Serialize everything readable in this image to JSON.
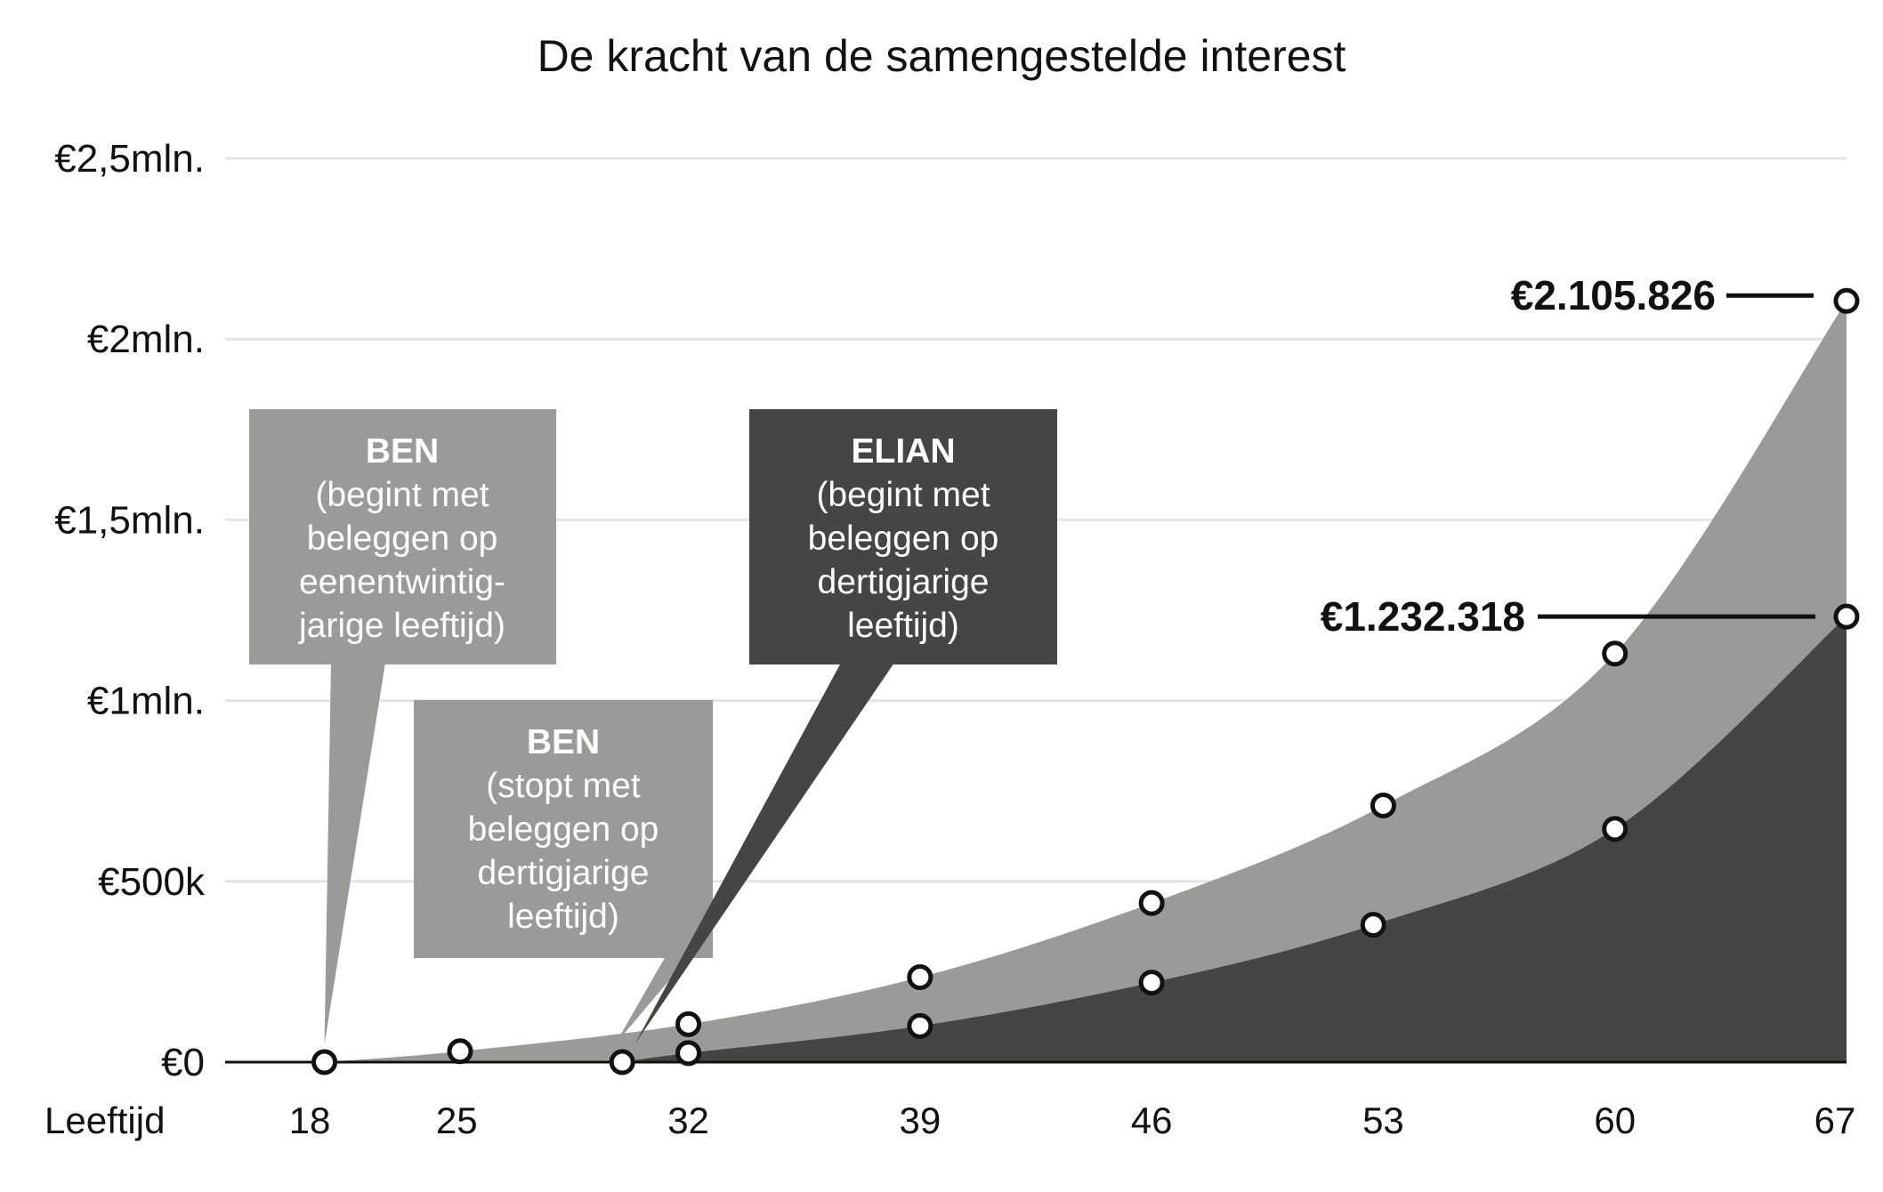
{
  "chart_data": {
    "type": "area",
    "title": "De kracht van de samengestelde interest",
    "xlabel": "Leeftijd",
    "ylabel": "",
    "x_ticks": [
      18,
      25,
      32,
      39,
      46,
      53,
      60,
      67
    ],
    "y_ticks": [
      {
        "value": 0,
        "label": "€0"
      },
      {
        "value": 500000,
        "label": "€500k"
      },
      {
        "value": 1000000,
        "label": "€1mln."
      },
      {
        "value": 1500000,
        "label": "€1,5mln."
      },
      {
        "value": 2000000,
        "label": "€2mln."
      },
      {
        "value": 2500000,
        "label": "€2,5mln."
      }
    ],
    "xlim": [
      18,
      67
    ],
    "ylim": [
      0,
      2500000
    ],
    "grid": true,
    "colors": {
      "ben": "#9a9a99",
      "elian": "#454544",
      "grid": "#e4e4e4",
      "axis": "#111111"
    },
    "series": [
      {
        "key": "ben",
        "color": "#9a9a99",
        "points": [
          {
            "x": 21,
            "y": 0
          },
          {
            "x": 25.1,
            "y": 30000
          },
          {
            "x": 32,
            "y": 105000
          },
          {
            "x": 39,
            "y": 235000
          },
          {
            "x": 46,
            "y": 440000
          },
          {
            "x": 53,
            "y": 710000
          },
          {
            "x": 60,
            "y": 1130000
          },
          {
            "x": 67,
            "y": 2105826
          }
        ]
      },
      {
        "key": "elian",
        "color": "#454544",
        "points": [
          {
            "x": 30,
            "y": 0
          },
          {
            "x": 32,
            "y": 25000
          },
          {
            "x": 39,
            "y": 100000
          },
          {
            "x": 46,
            "y": 220000
          },
          {
            "x": 52.7,
            "y": 380000
          },
          {
            "x": 60,
            "y": 645000
          },
          {
            "x": 67,
            "y": 1232318
          }
        ]
      }
    ],
    "end_labels": [
      {
        "text": "€2.105.826",
        "x": 67,
        "y": 2105826
      },
      {
        "text": "€1.232.318",
        "x": 67,
        "y": 1232318
      }
    ],
    "callouts": [
      {
        "title": "BEN",
        "lines": [
          "(begint met",
          "beleggen op",
          "eenentwintig-",
          "jarige leeftijd)"
        ],
        "color": "#9a9a99",
        "target_x": 21
      },
      {
        "title": "BEN",
        "lines": [
          "(stopt met",
          "beleggen op",
          "dertigjarige",
          "leeftijd)"
        ],
        "color": "#9a9a99",
        "target_x": 30
      },
      {
        "title": "ELIAN",
        "lines": [
          "(begint met",
          "beleggen op",
          "dertigjarige",
          "leeftijd)"
        ],
        "color": "#454544",
        "target_x": 30
      }
    ]
  }
}
